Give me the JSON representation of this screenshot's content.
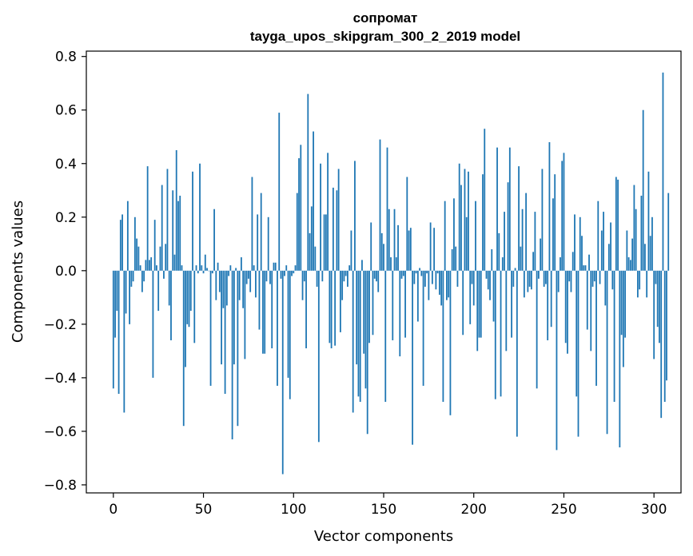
{
  "chart_data": {
    "type": "bar",
    "title": "сопромат",
    "subtitle": "tayga_upos_skipgram_300_2_2019 model",
    "xlabel": "Vector components",
    "ylabel": "Components values",
    "xlim": [
      -15,
      315
    ],
    "ylim": [
      -0.83,
      0.82
    ],
    "xticks": [
      0,
      50,
      100,
      150,
      200,
      250,
      300
    ],
    "xtick_labels": [
      "0",
      "50",
      "100",
      "150",
      "200",
      "250",
      "300"
    ],
    "yticks": [
      0.8,
      0.6,
      0.4,
      0.2,
      0.0,
      -0.2,
      -0.4,
      -0.6,
      -0.8
    ],
    "ytick_labels": [
      "0.8",
      "0.6",
      "0.4",
      "0.2",
      "0.0",
      "−0.2",
      "−0.4",
      "−0.6",
      "−0.8"
    ],
    "grid": false,
    "bar_color": "#1f77b4",
    "values": [
      -0.44,
      -0.25,
      -0.15,
      -0.46,
      0.19,
      0.21,
      -0.53,
      -0.16,
      0.26,
      -0.2,
      -0.06,
      -0.04,
      0.2,
      0.12,
      0.09,
      0.02,
      -0.08,
      -0.04,
      0.04,
      0.39,
      0.04,
      0.05,
      -0.4,
      0.19,
      0.02,
      -0.15,
      0.09,
      0.32,
      -0.03,
      0.1,
      0.38,
      -0.13,
      -0.26,
      0.3,
      0.06,
      0.45,
      0.26,
      0.28,
      0.02,
      -0.58,
      -0.36,
      -0.2,
      -0.21,
      -0.15,
      0.37,
      -0.27,
      0.02,
      -0.01,
      0.4,
      0.02,
      -0.01,
      0.06,
      0.01,
      0.0,
      -0.43,
      -0.01,
      0.23,
      -0.11,
      0.03,
      -0.08,
      -0.35,
      -0.14,
      -0.46,
      -0.13,
      -0.02,
      0.02,
      -0.63,
      -0.35,
      0.01,
      -0.58,
      -0.11,
      0.05,
      -0.14,
      -0.33,
      -0.05,
      -0.03,
      -0.08,
      0.35,
      0.02,
      -0.1,
      0.21,
      -0.22,
      0.29,
      -0.31,
      -0.31,
      -0.04,
      0.2,
      -0.05,
      -0.29,
      0.03,
      0.03,
      -0.43,
      0.59,
      -0.03,
      -0.76,
      -0.02,
      0.02,
      -0.4,
      -0.48,
      -0.02,
      -0.01,
      0.02,
      0.29,
      0.42,
      0.47,
      -0.11,
      -0.04,
      -0.29,
      0.66,
      0.14,
      0.24,
      0.52,
      0.09,
      -0.06,
      -0.64,
      0.4,
      -0.04,
      0.21,
      0.21,
      0.44,
      -0.27,
      -0.29,
      0.31,
      -0.28,
      0.3,
      0.38,
      -0.23,
      -0.11,
      -0.04,
      -0.02,
      -0.06,
      0.02,
      0.15,
      -0.53,
      0.41,
      -0.35,
      -0.47,
      -0.49,
      0.04,
      -0.31,
      -0.44,
      -0.61,
      -0.27,
      0.18,
      -0.24,
      -0.03,
      -0.04,
      -0.08,
      0.49,
      0.14,
      0.1,
      -0.49,
      0.46,
      0.23,
      0.05,
      -0.26,
      0.23,
      0.05,
      0.17,
      -0.32,
      -0.03,
      -0.02,
      -0.25,
      0.35,
      0.15,
      0.16,
      -0.65,
      -0.05,
      -0.01,
      -0.19,
      0.01,
      -0.02,
      -0.43,
      -0.06,
      -0.01,
      -0.11,
      0.18,
      -0.05,
      0.16,
      -0.07,
      -0.01,
      -0.09,
      -0.13,
      -0.49,
      0.26,
      -0.11,
      -0.1,
      -0.54,
      0.08,
      0.27,
      0.09,
      -0.06,
      0.4,
      0.32,
      -0.24,
      0.38,
      0.2,
      0.37,
      -0.2,
      -0.05,
      -0.13,
      0.26,
      -0.3,
      -0.25,
      -0.25,
      0.36,
      0.53,
      -0.03,
      -0.07,
      -0.11,
      0.08,
      -0.19,
      -0.48,
      0.46,
      0.14,
      -0.47,
      0.05,
      0.22,
      -0.3,
      0.33,
      0.46,
      -0.25,
      -0.06,
      0.01,
      -0.62,
      0.39,
      0.09,
      0.23,
      -0.1,
      0.29,
      -0.08,
      -0.06,
      -0.07,
      0.07,
      0.22,
      -0.44,
      -0.03,
      0.12,
      0.38,
      -0.06,
      -0.05,
      -0.26,
      0.48,
      -0.21,
      0.27,
      0.36,
      -0.67,
      -0.08,
      0.05,
      0.41,
      0.44,
      -0.27,
      -0.31,
      -0.04,
      -0.08,
      0.07,
      0.21,
      -0.47,
      -0.62,
      0.2,
      0.13,
      0.02,
      0.02,
      -0.22,
      0.06,
      -0.3,
      -0.06,
      -0.04,
      -0.43,
      0.26,
      -0.05,
      0.15,
      0.22,
      -0.13,
      -0.61,
      0.1,
      0.18,
      -0.07,
      -0.49,
      0.35,
      0.34,
      -0.66,
      -0.24,
      -0.36,
      -0.25,
      0.15,
      0.05,
      0.04,
      0.12,
      0.32,
      0.23,
      -0.1,
      -0.07,
      0.28,
      0.6,
      0.1,
      -0.1,
      0.37,
      0.13,
      0.2,
      -0.33,
      -0.05,
      -0.21,
      -0.27,
      -0.55,
      0.74,
      -0.49,
      -0.41,
      0.29
    ]
  }
}
